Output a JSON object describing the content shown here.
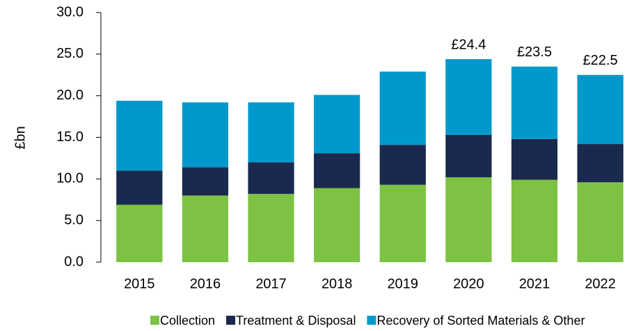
{
  "chart_data": {
    "type": "stacked_bar",
    "y_label": "£bn",
    "categories": [
      "2015",
      "2016",
      "2017",
      "2018",
      "2019",
      "2020",
      "2021",
      "2022"
    ],
    "series": [
      {
        "name": "Collection",
        "color": "#7dc243",
        "values": [
          6.9,
          8.0,
          8.2,
          8.9,
          9.3,
          10.2,
          9.9,
          9.6
        ]
      },
      {
        "name": "Treatment & Disposal",
        "color": "#1a2a4f",
        "values": [
          4.1,
          3.4,
          3.8,
          4.2,
          4.8,
          5.1,
          4.9,
          4.6
        ]
      },
      {
        "name": "Recovery of Sorted Materials & Other",
        "color": "#0099cc",
        "values": [
          8.4,
          7.8,
          7.2,
          7.0,
          8.8,
          9.1,
          8.7,
          8.3
        ]
      }
    ],
    "total_labels": [
      null,
      null,
      null,
      null,
      null,
      "£24.4",
      "£23.5",
      "£22.5"
    ],
    "ylim": [
      0,
      30
    ],
    "yticks": [
      {
        "value": 0,
        "label": "0.0"
      },
      {
        "value": 5,
        "label": "5.0"
      },
      {
        "value": 10,
        "label": "10.0"
      },
      {
        "value": 15,
        "label": "15.0"
      },
      {
        "value": 20,
        "label": "20.0"
      },
      {
        "value": 25,
        "label": "25.0"
      },
      {
        "value": 30,
        "label": "30.0"
      }
    ],
    "grid": false,
    "legend": "bottom"
  }
}
